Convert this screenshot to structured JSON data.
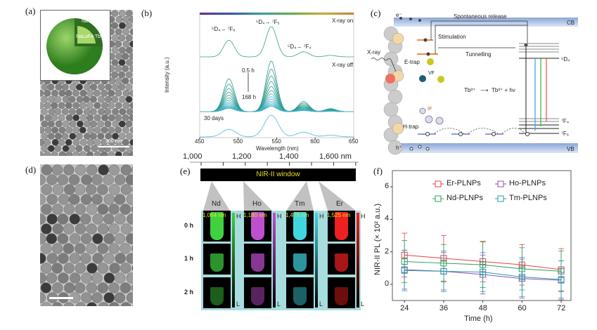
{
  "panels": {
    "a": {
      "label": "(a)",
      "inset_text": [
        "NaYF4",
        "NaLuF4:Tb"
      ],
      "scale_bar": "100 nm"
    },
    "b": {
      "label": "(b)"
    },
    "c": {
      "label": "(c)",
      "cb": "CB",
      "vb": "VB",
      "electron": "e⁻",
      "hole": "h⁺",
      "spontaneous": "Spontaneous release",
      "stimulation": "Stimulation",
      "tunnelling": "Tunnelling",
      "xray": "X-ray",
      "etrap": "E-trap",
      "htrap": "H-trap",
      "vf": "VF",
      "if": "IF",
      "reaction_left": "Tb³⁺",
      "reaction_right": "Tb³⁺ + hν",
      "level_5d4": "⁵D₄",
      "level_7f4": "⁷F₄",
      "level_7f6": "⁷F₆"
    },
    "d": {
      "label": "(d)"
    },
    "e": {
      "label": "(e)",
      "axis_ticks": [
        "1,000",
        "1,200",
        "1,400",
        "1,600 nm"
      ],
      "window": "NIR-II window",
      "columns": [
        {
          "element": "Nd",
          "wavelength": "1,064 nm",
          "color": "#3fd13f"
        },
        {
          "element": "Ho",
          "wavelength": "1,180 nm",
          "color": "#c04fd0"
        },
        {
          "element": "Tm",
          "wavelength": "1,475 nm",
          "color": "#3fd6e0"
        },
        {
          "element": "Er",
          "wavelength": "1,525 nm",
          "color": "#f02020"
        }
      ],
      "rows": [
        "0 h",
        "1 h",
        "2 h"
      ],
      "row_intensity": [
        1,
        0.7,
        0.45
      ],
      "high": "H",
      "low": "L"
    },
    "f": {
      "label": "(f)"
    }
  },
  "chart_data": [
    {
      "panel": "b",
      "type": "line",
      "xlabel": "Wavelength (nm)",
      "ylabel": "Intensity (a.u.)",
      "xlim": [
        450,
        650
      ],
      "xticks": [
        450,
        500,
        550,
        600,
        650
      ],
      "annotations": [
        "⁵D₄→ ⁷F₆",
        "⁵D₄→ ⁷F₅",
        "⁵D₄→ ⁷F₄",
        "X-ray on",
        "X-ray off",
        "0.5 h",
        "168 h",
        "30 days"
      ],
      "peaks_nm": [
        488,
        543,
        585,
        620
      ],
      "series": [
        {
          "name": "X-ray on",
          "peak_heights": [
            0.55,
            1,
            0.17,
            0.05
          ],
          "color": "#3a9e86"
        },
        {
          "name": "X-ray off",
          "peak_heights": [
            0.65,
            1,
            0.2,
            0.06
          ],
          "color": "#2f9a8a"
        },
        {
          "name": "30 days",
          "peak_heights": [
            0.35,
            1,
            0.22,
            0.08
          ],
          "color": "#4bb6e0"
        }
      ]
    },
    {
      "panel": "f",
      "type": "line",
      "xlabel": "Time (h)",
      "ylabel": "NIR-II PL (× 10² a.u.)",
      "x": [
        24,
        36,
        48,
        60,
        72
      ],
      "xlim": [
        20.3,
        75
      ],
      "ylim": [
        -1,
        7
      ],
      "yticks": [
        0,
        2,
        4,
        6
      ],
      "legend": "top-right",
      "series": [
        {
          "name": "Er-PLNPs",
          "values": [
            1.8,
            1.6,
            1.4,
            1.2,
            0.9
          ],
          "errors": [
            1.35,
            1.4,
            1.25,
            1.25,
            1.3
          ],
          "color": "#e8404a"
        },
        {
          "name": "Ho-PLNPs",
          "values": [
            0.9,
            0.8,
            0.6,
            0.35,
            0.25
          ],
          "errors": [
            1.2,
            1.15,
            1.2,
            1.2,
            1.2
          ],
          "color": "#9050b0"
        },
        {
          "name": "Nd-PLNPs",
          "values": [
            1.4,
            1.3,
            1.2,
            0.95,
            0.8
          ],
          "errors": [
            1.3,
            1.15,
            1.4,
            1.3,
            1.25
          ],
          "color": "#2e9e5a"
        },
        {
          "name": "Tm-PLNPs",
          "values": [
            0.85,
            0.8,
            0.75,
            0.45,
            0.3
          ],
          "errors": [
            1.25,
            1.25,
            1.2,
            1.2,
            1.15
          ],
          "color": "#2a9aa8"
        }
      ]
    }
  ]
}
